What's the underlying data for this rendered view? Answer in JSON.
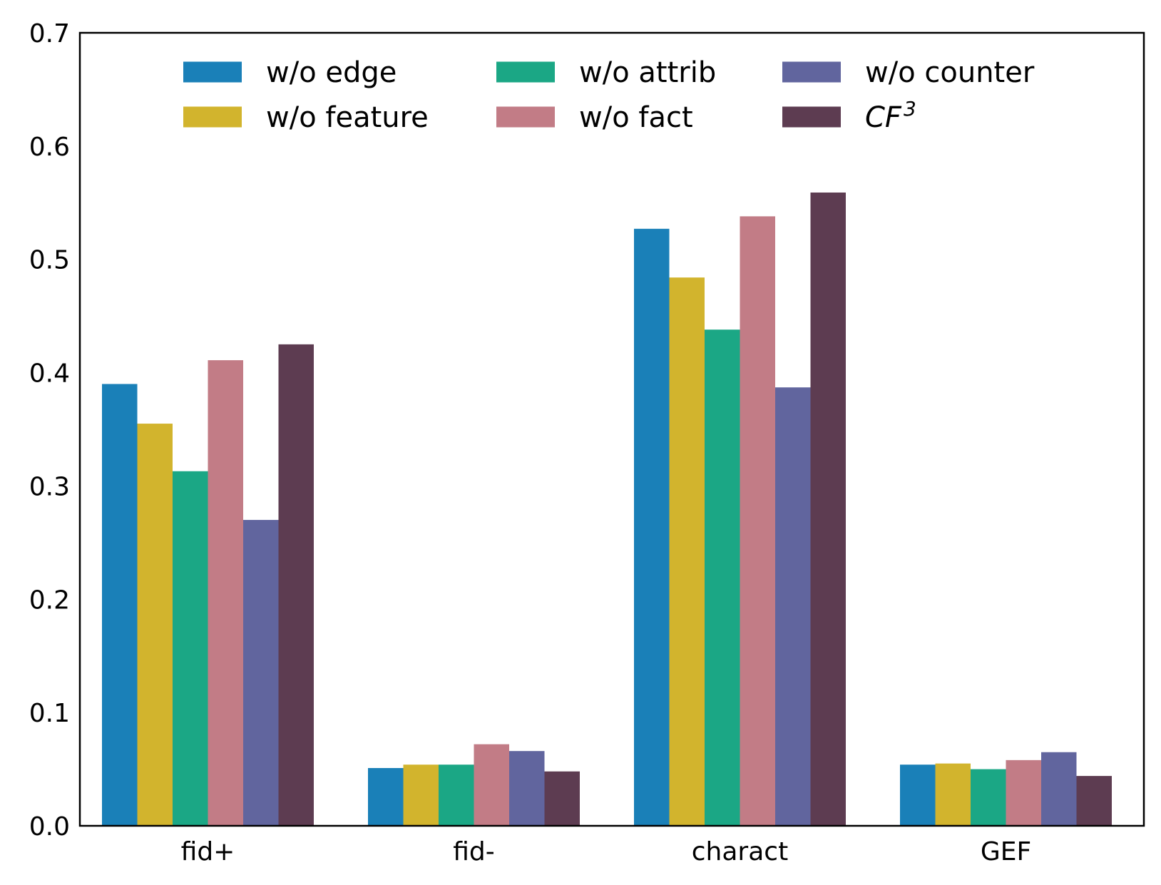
{
  "chart_data": {
    "type": "bar",
    "title": "",
    "xlabel": "",
    "ylabel": "",
    "categories": [
      "fid+",
      "fid-",
      "charact",
      "GEF"
    ],
    "ylim": [
      0,
      0.7
    ],
    "yticks": [
      "0.0",
      "0.1",
      "0.2",
      "0.3",
      "0.4",
      "0.5",
      "0.6",
      "0.7"
    ],
    "grid": false,
    "legend_placement": "top",
    "series": [
      {
        "name": "w/o edge",
        "color": "#1a80b8",
        "values": [
          0.39,
          0.051,
          0.527,
          0.054
        ]
      },
      {
        "name": "w/o feature",
        "color": "#d2b42d",
        "values": [
          0.355,
          0.054,
          0.484,
          0.055
        ]
      },
      {
        "name": "w/o attrib",
        "color": "#1ba785",
        "values": [
          0.313,
          0.054,
          0.438,
          0.05
        ]
      },
      {
        "name": "w/o fact",
        "color": "#c27c86",
        "values": [
          0.411,
          0.072,
          0.538,
          0.058
        ]
      },
      {
        "name": "w/o counter",
        "color": "#61659e",
        "values": [
          0.27,
          0.066,
          0.387,
          0.065
        ]
      },
      {
        "name": "CF",
        "superscript": "3",
        "color": "#5d3c51",
        "values": [
          0.425,
          0.048,
          0.559,
          0.044
        ]
      }
    ]
  }
}
